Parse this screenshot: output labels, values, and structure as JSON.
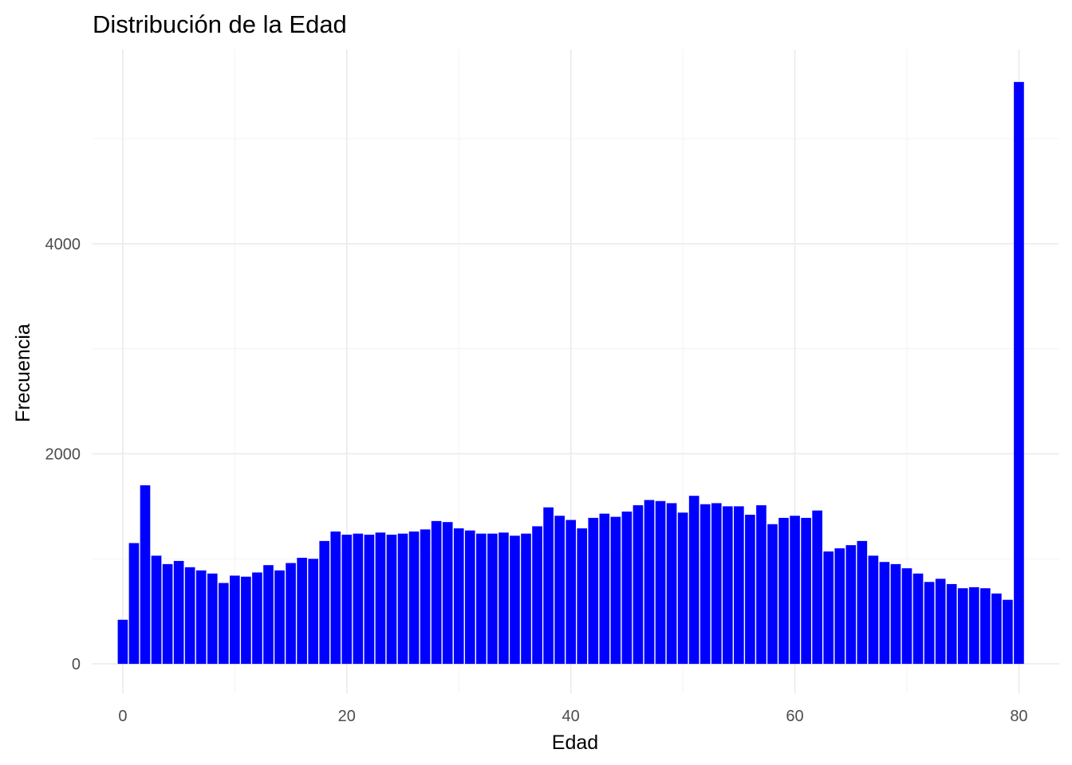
{
  "chart_data": {
    "type": "bar",
    "title": "Distribución de la Edad",
    "xlabel": "Edad",
    "ylabel": "Frecuencia",
    "xlim": [
      -2.7,
      83.6
    ],
    "ylim": [
      -280,
      5850
    ],
    "x_ticks": [
      0,
      20,
      40,
      60,
      80
    ],
    "y_ticks": [
      0,
      2000,
      4000
    ],
    "x_tick_labels": [
      "0",
      "20",
      "40",
      "60",
      "80"
    ],
    "y_tick_labels": [
      "0",
      "2000",
      "4000"
    ],
    "bar_color": "#0000ff",
    "grid": true,
    "x": [
      0,
      1,
      2,
      3,
      4,
      5,
      6,
      7,
      8,
      9,
      10,
      11,
      12,
      13,
      14,
      15,
      16,
      17,
      18,
      19,
      20,
      21,
      22,
      23,
      24,
      25,
      26,
      27,
      28,
      29,
      30,
      31,
      32,
      33,
      34,
      35,
      36,
      37,
      38,
      39,
      40,
      41,
      42,
      43,
      44,
      45,
      46,
      47,
      48,
      49,
      50,
      51,
      52,
      53,
      54,
      55,
      56,
      57,
      58,
      59,
      60,
      61,
      62,
      63,
      64,
      65,
      66,
      67,
      68,
      69,
      70,
      71,
      72,
      73,
      74,
      75,
      76,
      77,
      78,
      79,
      80
    ],
    "values": [
      420,
      1150,
      1700,
      1030,
      950,
      980,
      920,
      890,
      860,
      770,
      840,
      830,
      870,
      940,
      890,
      960,
      1010,
      1000,
      1170,
      1260,
      1230,
      1240,
      1230,
      1250,
      1230,
      1240,
      1260,
      1280,
      1360,
      1350,
      1290,
      1270,
      1240,
      1240,
      1250,
      1220,
      1240,
      1310,
      1490,
      1410,
      1370,
      1290,
      1390,
      1430,
      1400,
      1450,
      1510,
      1560,
      1550,
      1530,
      1440,
      1600,
      1520,
      1530,
      1500,
      1500,
      1420,
      1510,
      1330,
      1390,
      1410,
      1390,
      1460,
      1070,
      1100,
      1130,
      1170,
      1030,
      970,
      950,
      910,
      860,
      780,
      810,
      760,
      720,
      730,
      720,
      670,
      610,
      5540
    ]
  }
}
